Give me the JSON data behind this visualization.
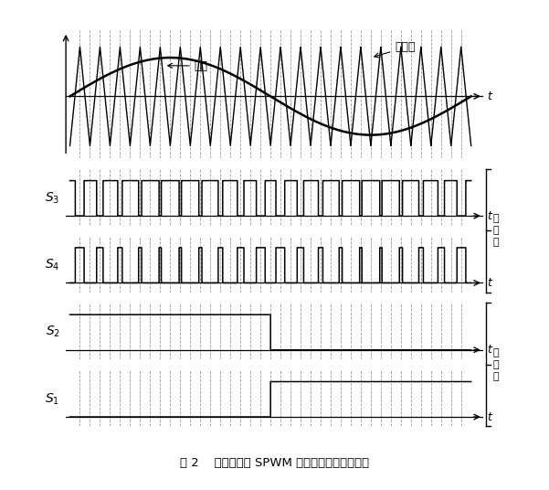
{
  "title": "图 2    单极性双边 SPWM 控制方式开关量的整定",
  "label_zaibo": "载波",
  "label_tiaozhibo": "调制波",
  "label_gaopin": "高\n频\n臂",
  "label_dipin": "低\n频\n臂",
  "mod_amp": 0.78,
  "car_amp": 1.0,
  "carrier_ratio": 5,
  "background": "#ffffff",
  "line_color": "#000000",
  "dash_color": "#888888"
}
